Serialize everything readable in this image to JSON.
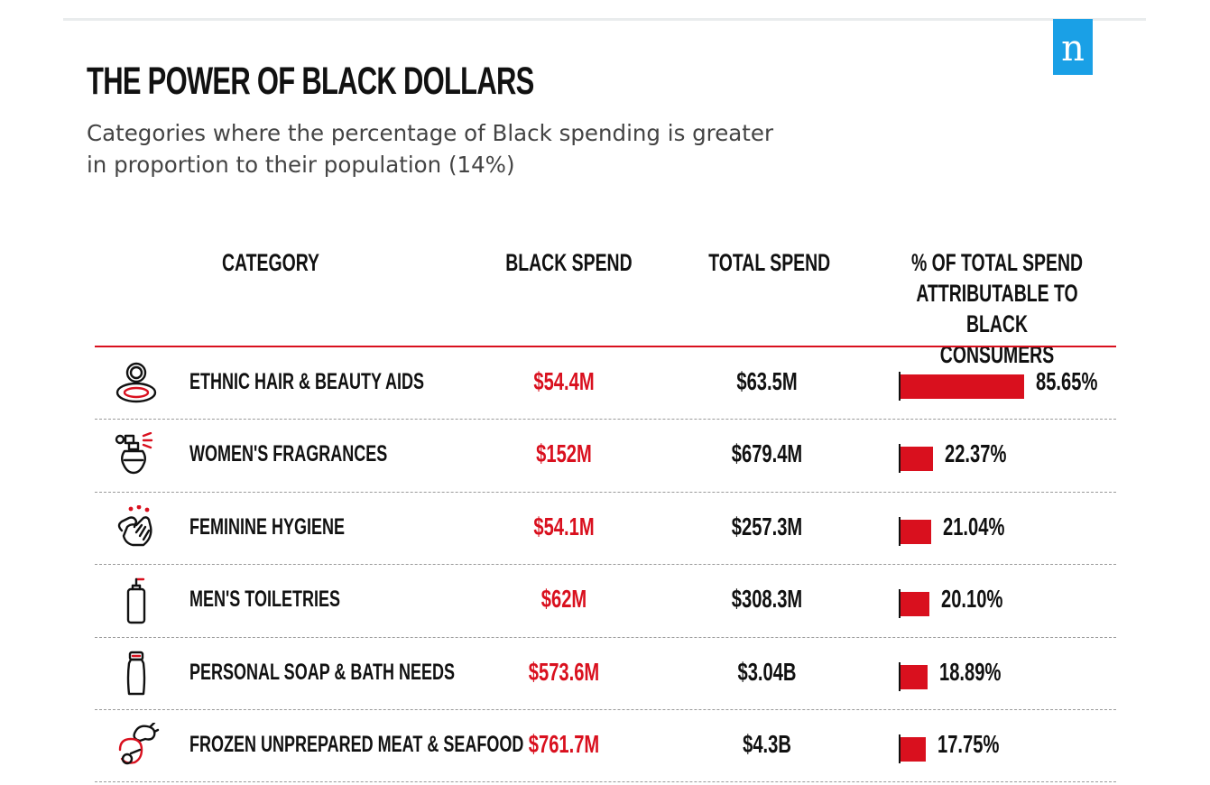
{
  "brand": {
    "logo_letter": "n",
    "logo_color": "#1aa0e6"
  },
  "title": "THE POWER OF BLACK DOLLARS",
  "subtitle": "Categories where the percentage of Black spending is greater in proportion to their population (14%)",
  "colors": {
    "accent": "#d9101e",
    "text": "#111111"
  },
  "table": {
    "headers": {
      "category": "CATEGORY",
      "black_spend": "BLACK SPEND",
      "total_spend": "TOTAL SPEND",
      "pct": "% OF TOTAL SPEND\nATTRIBUTABLE TO\nBLACK CONSUMERS"
    }
  },
  "chart_data": {
    "type": "bar",
    "orientation": "horizontal",
    "title": "THE POWER OF BLACK DOLLARS",
    "xlabel": "% OF TOTAL SPEND ATTRIBUTABLE TO BLACK CONSUMERS",
    "xlim": [
      0,
      85.65
    ],
    "categories": [
      "ETHNIC HAIR & BEAUTY AIDS",
      "WOMEN'S FRAGRANCES",
      "FEMININE HYGIENE",
      "MEN'S TOILETRIES",
      "PERSONAL SOAP & BATH NEEDS",
      "FROZEN UNPREPARED MEAT & SEAFOOD"
    ],
    "values": [
      85.65,
      22.37,
      21.04,
      20.1,
      18.89,
      17.75
    ],
    "value_labels": [
      "85.65%",
      "22.37%",
      "21.04%",
      "20.10%",
      "18.89%",
      "17.75%"
    ],
    "black_spend": [
      "$54.4M",
      "$152M",
      "$54.1M",
      "$62M",
      "$573.6M",
      "$761.7M"
    ],
    "total_spend": [
      "$63.5M",
      "$679.4M",
      "$257.3M",
      "$308.3M",
      "$3.04B",
      "$4.3B"
    ],
    "icons": [
      "compact-mirror-icon",
      "perfume-bottle-icon",
      "hands-washing-icon",
      "pump-bottle-icon",
      "lotion-bottle-icon",
      "meat-fish-icon"
    ]
  }
}
